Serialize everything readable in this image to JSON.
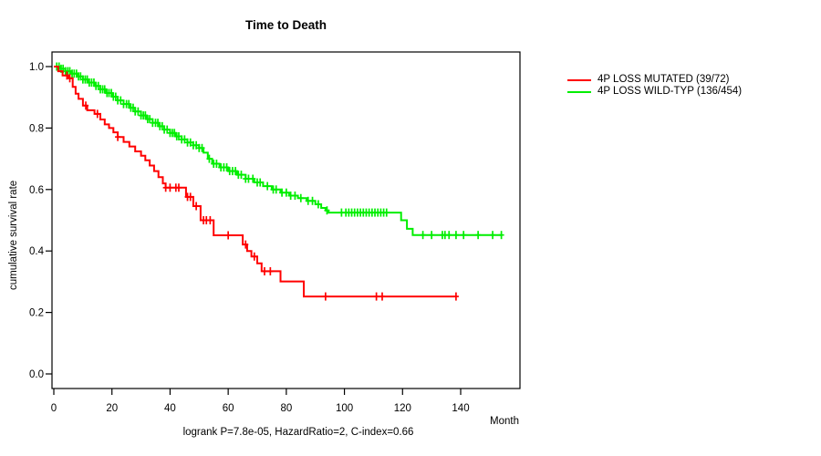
{
  "title": "Time to Death",
  "chart_data": {
    "type": "line",
    "subtype": "kaplan-meier-step-survival",
    "title": "Time to Death",
    "xlabel": "Month",
    "ylabel": "cumulative survival rate",
    "annotation": "logrank P=7.8e-05, HazardRatio=2, C-index=0.66",
    "xlim": [
      0,
      160
    ],
    "ylim": [
      0,
      1
    ],
    "x_ticks": [
      0,
      20,
      40,
      60,
      80,
      100,
      120,
      140
    ],
    "y_ticks": [
      1.0,
      0.8,
      0.6,
      0.4,
      0.2,
      0.0
    ],
    "grid": false,
    "legend_position": "right-outside",
    "axis_color": "#000000",
    "series": [
      {
        "name": "4P LOSS WILD-TYP (136/454)",
        "color": "#00ee00",
        "steps": [
          [
            0,
            1.0
          ],
          [
            2,
            0.993
          ],
          [
            4,
            0.985
          ],
          [
            6,
            0.977
          ],
          [
            8,
            0.968
          ],
          [
            10,
            0.958
          ],
          [
            12,
            0.948
          ],
          [
            14,
            0.937
          ],
          [
            16,
            0.926
          ],
          [
            18,
            0.914
          ],
          [
            20,
            0.902
          ],
          [
            22,
            0.89
          ],
          [
            24,
            0.878
          ],
          [
            26,
            0.866
          ],
          [
            28,
            0.854
          ],
          [
            30,
            0.841
          ],
          [
            32,
            0.829
          ],
          [
            34,
            0.817
          ],
          [
            36,
            0.806
          ],
          [
            38,
            0.795
          ],
          [
            40,
            0.784
          ],
          [
            42,
            0.773
          ],
          [
            44,
            0.763
          ],
          [
            46,
            0.753
          ],
          [
            48,
            0.744
          ],
          [
            50,
            0.735
          ],
          [
            51.5,
            0.72
          ],
          [
            53,
            0.7
          ],
          [
            54.5,
            0.684
          ],
          [
            57,
            0.672
          ],
          [
            60,
            0.66
          ],
          [
            63,
            0.648
          ],
          [
            66,
            0.635
          ],
          [
            69,
            0.623
          ],
          [
            72,
            0.611
          ],
          [
            75,
            0.6
          ],
          [
            78,
            0.59
          ],
          [
            81,
            0.58
          ],
          [
            84,
            0.572
          ],
          [
            87,
            0.563
          ],
          [
            90,
            0.552
          ],
          [
            92,
            0.54
          ],
          [
            93.5,
            0.532
          ],
          [
            94.5,
            0.525
          ],
          [
            119.5,
            0.5
          ],
          [
            121.5,
            0.472
          ],
          [
            123.5,
            0.452
          ],
          [
            154,
            0.452
          ]
        ],
        "censor_times": [
          1,
          1.8,
          2.5,
          3.2,
          4,
          4.8,
          5.5,
          6.3,
          7,
          7.8,
          8.5,
          9.2,
          10,
          10.8,
          11.5,
          12.2,
          13,
          13.8,
          14.5,
          15.3,
          16,
          16.8,
          17.5,
          18.3,
          19,
          19.8,
          20.5,
          21.3,
          22,
          23,
          24,
          25,
          25.8,
          26.5,
          27.3,
          28,
          29,
          30,
          30.8,
          31.5,
          32.3,
          33,
          34,
          35,
          35.8,
          36.5,
          37.3,
          38,
          39,
          40,
          40.8,
          41.5,
          42.3,
          43,
          44,
          45,
          46,
          47,
          48,
          49,
          50,
          51,
          53.5,
          55,
          56,
          57.5,
          58.5,
          59.5,
          60.5,
          61.5,
          62.5,
          63.5,
          64.5,
          66,
          67,
          68.5,
          70,
          71,
          73.5,
          75.5,
          76.5,
          78.5,
          80,
          81.5,
          83,
          85,
          87.5,
          89,
          91,
          94,
          99,
          100.5,
          101.5,
          102.5,
          103.5,
          104.5,
          105.5,
          106.5,
          107.5,
          108.5,
          109.5,
          110.5,
          111.5,
          112.5,
          113.5,
          114.5,
          127,
          130,
          133.7,
          134.6,
          136,
          138.4,
          141,
          146,
          151,
          154
        ]
      },
      {
        "name": "4P LOSS MUTATED (39/72)",
        "color": "#ff0000",
        "steps": [
          [
            0,
            1.0
          ],
          [
            1.5,
            0.985
          ],
          [
            3,
            0.971
          ],
          [
            5,
            0.962
          ],
          [
            6.5,
            0.934
          ],
          [
            7.5,
            0.912
          ],
          [
            8.5,
            0.895
          ],
          [
            10,
            0.873
          ],
          [
            11.5,
            0.858
          ],
          [
            14,
            0.846
          ],
          [
            16,
            0.828
          ],
          [
            17.5,
            0.812
          ],
          [
            19,
            0.8
          ],
          [
            20.5,
            0.786
          ],
          [
            22,
            0.771
          ],
          [
            24,
            0.755
          ],
          [
            26,
            0.74
          ],
          [
            28,
            0.724
          ],
          [
            30,
            0.71
          ],
          [
            31.5,
            0.695
          ],
          [
            33,
            0.678
          ],
          [
            34.5,
            0.66
          ],
          [
            36,
            0.64
          ],
          [
            37.5,
            0.62
          ],
          [
            38.5,
            0.606
          ],
          [
            45.5,
            0.576
          ],
          [
            48,
            0.546
          ],
          [
            50.5,
            0.5
          ],
          [
            55,
            0.451
          ],
          [
            65,
            0.421
          ],
          [
            66.5,
            0.4
          ],
          [
            68,
            0.382
          ],
          [
            70,
            0.36
          ],
          [
            71.5,
            0.334
          ],
          [
            78,
            0.301
          ],
          [
            86,
            0.252
          ],
          [
            138.4,
            0.252
          ]
        ],
        "censor_times": [
          4.5,
          5.5,
          11,
          15,
          22,
          38.5,
          40,
          42,
          43,
          46,
          47,
          49,
          51.5,
          52.5,
          53.8,
          60,
          66,
          69,
          72.5,
          74.5,
          93.5,
          111,
          113,
          138.4
        ]
      }
    ]
  },
  "legend": [
    {
      "label": "4P LOSS MUTATED (39/72)",
      "color": "#ff0000"
    },
    {
      "label": "4P LOSS WILD-TYP (136/454)",
      "color": "#00ee00"
    }
  ]
}
